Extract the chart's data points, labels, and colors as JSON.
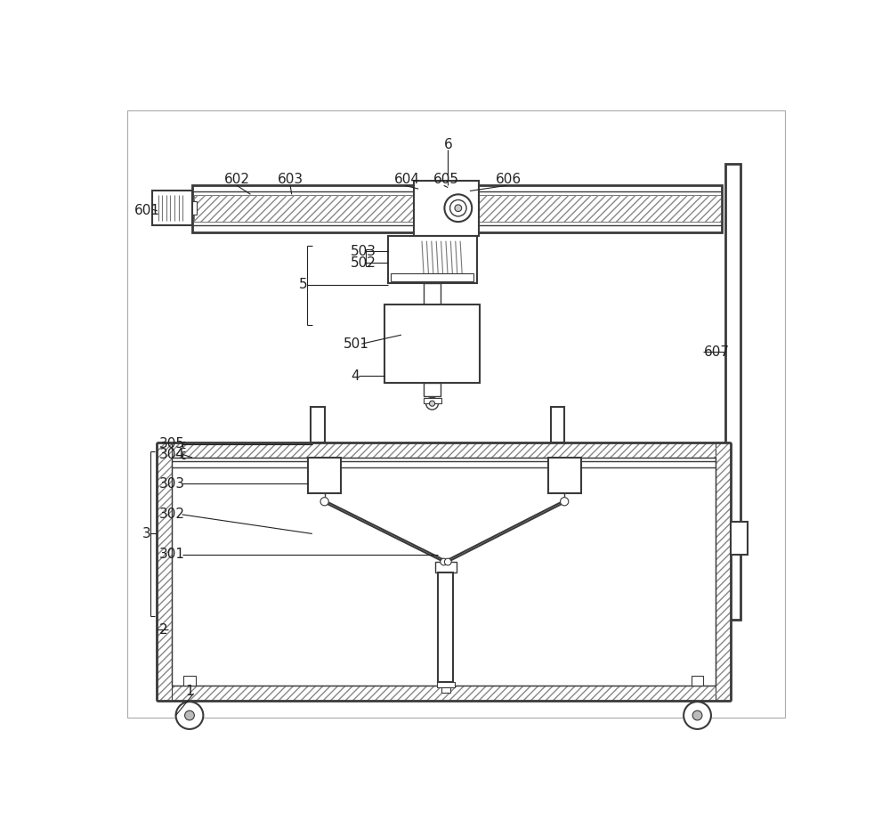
{
  "bg_color": "#ffffff",
  "line_color": "#3a3a3a",
  "hatch_color": "#888888",
  "label_fontsize": 11,
  "label_color": "#222222"
}
